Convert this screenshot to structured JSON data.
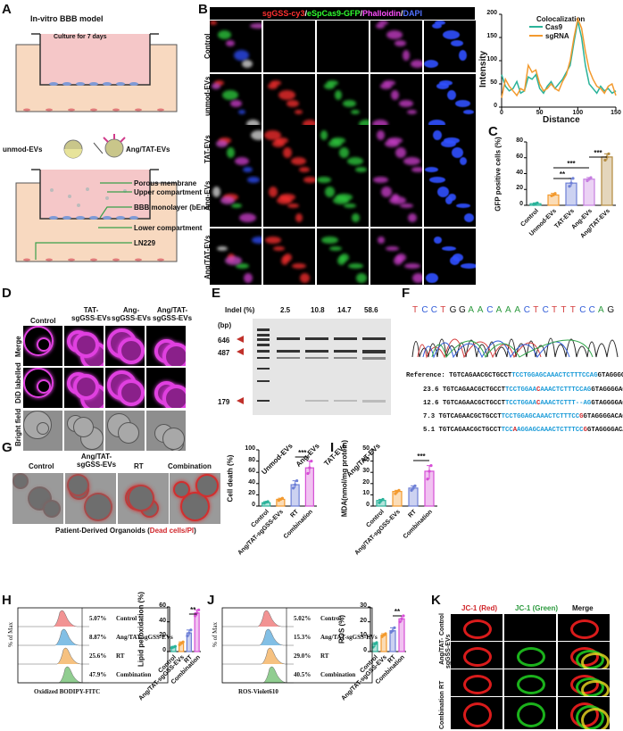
{
  "panels": {
    "A": "A",
    "B": "B",
    "C": "C",
    "D": "D",
    "E": "E",
    "F": "F",
    "G": "G",
    "H": "H",
    "I": "I",
    "J": "J",
    "K": "K"
  },
  "panelA": {
    "title": "In-vitro BBB model",
    "culture": "Culture for 7 days",
    "unmod": "unmod-EVs",
    "angtat": "Ang/TAT-EVs",
    "labels": [
      "Porous membrane",
      "Upper compartment",
      "BBB monolayer (bEnd.3)",
      "Lower compartment",
      "LN229"
    ]
  },
  "panelB": {
    "header": {
      "sg": "sgGSS-cy3",
      "s1": "/",
      "cas": "eSpCas9-GFP",
      "s2": "/",
      "ph": "Phalloidin",
      "s3": "/",
      "dapi": "DAPI"
    },
    "rows": [
      "Control",
      "unmod-EVs",
      "TAT-EVs",
      "Ang-EVs",
      "Ang/TAT-EVs"
    ],
    "coloc": {
      "title": "Colocalization",
      "legend": [
        "Cas9",
        "sgRNA"
      ],
      "xlabel": "Distance",
      "ylabel": "Intensity",
      "xticks": [
        "0",
        "50",
        "100",
        "150"
      ],
      "yticks": [
        "0",
        "50",
        "100",
        "150",
        "200"
      ]
    }
  },
  "chart_data": [
    {
      "type": "line",
      "panel": "B",
      "title": "Colocalization",
      "xlabel": "Distance",
      "ylabel": "Intensity",
      "xlim": [
        0,
        150
      ],
      "ylim": [
        0,
        200
      ],
      "series": [
        {
          "name": "Cas9",
          "color": "#2bb39a",
          "x": [
            0,
            5,
            10,
            15,
            20,
            25,
            30,
            35,
            40,
            45,
            50,
            55,
            60,
            65,
            70,
            75,
            80,
            85,
            90,
            95,
            100,
            105,
            110,
            115,
            120,
            125,
            130,
            135,
            140,
            145,
            150
          ],
          "y": [
            70,
            45,
            35,
            40,
            55,
            30,
            35,
            65,
            60,
            70,
            40,
            30,
            45,
            55,
            40,
            50,
            60,
            75,
            90,
            140,
            185,
            150,
            90,
            50,
            40,
            30,
            45,
            35,
            40,
            30,
            35
          ]
        },
        {
          "name": "sgRNA",
          "color": "#f39a2e",
          "x": [
            0,
            5,
            10,
            15,
            20,
            25,
            30,
            35,
            40,
            45,
            50,
            55,
            60,
            65,
            70,
            75,
            80,
            85,
            90,
            95,
            100,
            105,
            110,
            115,
            120,
            125,
            130,
            135,
            140,
            145,
            150
          ],
          "y": [
            20,
            60,
            45,
            35,
            25,
            40,
            35,
            90,
            75,
            80,
            50,
            35,
            40,
            50,
            40,
            35,
            55,
            70,
            100,
            150,
            190,
            170,
            120,
            80,
            60,
            45,
            40,
            30,
            45,
            50,
            25
          ]
        }
      ]
    },
    {
      "type": "bar",
      "panel": "C",
      "ylabel": "GFP positive cells (%)",
      "ylim": [
        0,
        80
      ],
      "yticks": [
        "0",
        "20",
        "40",
        "60",
        "80"
      ],
      "categories": [
        "Control",
        "Unmod-EVs",
        "TAT-EVs",
        "Ang-EVs",
        "Ang/TAT-EVs"
      ],
      "values": [
        2,
        13,
        28,
        33,
        61
      ],
      "colors": [
        "#2bb39a",
        "#f39a2e",
        "#6d7fd6",
        "#c67ee0",
        "#b28a3e"
      ],
      "sig": [
        "**",
        "***",
        "***"
      ]
    },
    {
      "type": "bar",
      "panel": "G",
      "ylabel": "Cell death (%)",
      "ylim": [
        0,
        100
      ],
      "yticks": [
        "0",
        "20",
        "40",
        "60",
        "80",
        "100"
      ],
      "categories": [
        "Control",
        "Ang/TAT-sgGSS-EVs",
        "RT",
        "Combination"
      ],
      "values": [
        6,
        12,
        38,
        68
      ],
      "colors": [
        "#2bb39a",
        "#f39a2e",
        "#6d7fd6",
        "#d64fd6"
      ],
      "sig": [
        "***"
      ]
    },
    {
      "type": "bar",
      "panel": "I",
      "ylabel": "MDA(nmol/mg protein)",
      "ylim": [
        0,
        50
      ],
      "yticks": [
        "0",
        "10",
        "20",
        "30",
        "40",
        "50"
      ],
      "categories": [
        "Control",
        "Ang/TAT-sgGSS-EVs",
        "RT",
        "Combination"
      ],
      "values": [
        5,
        13,
        16,
        31
      ],
      "colors": [
        "#2bb39a",
        "#f39a2e",
        "#6d7fd6",
        "#d64fd6"
      ],
      "sig": [
        "***"
      ]
    },
    {
      "type": "bar",
      "panel": "H",
      "ylabel": "Lipid peroxidation (%)",
      "ylim": [
        0,
        60
      ],
      "yticks": [
        "0",
        "20",
        "40",
        "60"
      ],
      "categories": [
        "Control",
        "Ang/TAT-sgGSS-EVs",
        "RT",
        "Combination"
      ],
      "values": [
        6,
        11,
        25,
        52
      ],
      "colors": [
        "#2bb39a",
        "#f39a2e",
        "#6d7fd6",
        "#d64fd6"
      ],
      "sig": [
        "**"
      ]
    },
    {
      "type": "bar",
      "panel": "J",
      "ylabel": "ROS (%)",
      "ylim": [
        0,
        30
      ],
      "yticks": [
        "0",
        "10",
        "20",
        "30"
      ],
      "categories": [
        "Control",
        "Ang/TAT-sgGSS-EVs",
        "RT",
        "Combination"
      ],
      "values": [
        5,
        11,
        14,
        22
      ],
      "colors": [
        "#2bb39a",
        "#f39a2e",
        "#6d7fd6",
        "#d64fd6"
      ],
      "sig": [
        "**"
      ]
    }
  ],
  "panelD": {
    "cols": [
      "Control",
      "TAT-\nsgGSS-EVs",
      "Ang-\nsgGSS-EVs",
      "Ang/TAT-\nsgGSS-EVs"
    ],
    "rows": [
      "Merge",
      "DiD labelled",
      "Bright field"
    ]
  },
  "panelE": {
    "indel_label": "Indel (%)",
    "indels": [
      "2.5",
      "10.8",
      "14.7",
      "58.6"
    ],
    "bp": "(bp)",
    "markers": [
      "646",
      "487",
      "179"
    ],
    "lanes": [
      "Unmod-EVs",
      "Ang-EVs",
      "TAT-EVs",
      "Ang/TAT-EVs"
    ]
  },
  "panelF": {
    "bases": [
      "T",
      "C",
      "C",
      "T",
      "G",
      "G",
      "A",
      "A",
      "C",
      "A",
      "A",
      "A",
      "C",
      "T",
      "C",
      "T",
      "T",
      "T",
      "C",
      "C",
      "A",
      "G"
    ],
    "lines": [
      {
        "prefix": "Reference: TGTCAGAACGCTGCCT",
        "mid": "TCCTGGAGCAAACTCTTTCCAG",
        "suffix": "GTAGGGGACAGT",
        "red": ""
      },
      {
        "prefix": "23.6 TGTCAGAACGCTGCCT",
        "mid": "TCCTGGAA",
        "red": "C",
        "mid2": "AAACTCTTTCCAG",
        "suffix": "GTAGGGGACAGT"
      },
      {
        "prefix": "12.6 TGTCAGAACGCTGCCT",
        "mid": "TCCTGGAA",
        "red": "C",
        "mid2": "AAACTCTTT--AG",
        "suffix": "GTAGGGGACAGT"
      },
      {
        "prefix": "7.3 TGTCAGAACGCTGCCT",
        "mid": "TCCTGGAGCAAACTCTTTCC",
        "red": "G",
        "mid2": "",
        "suffix": "GTAGGGGACAGT"
      },
      {
        "prefix": "5.1 TGTCAGAACGCTGCCT",
        "mid": "TCC",
        "red": "A",
        "mid2": "AGGAGCAAACTCTTTCC",
        "red2": "G",
        "suffix": "GTAGGGGACAGT"
      }
    ]
  },
  "panelG": {
    "cols": [
      "Control",
      "Ang/TAT-\nsgGSS-EVs",
      "RT",
      "Combination"
    ],
    "caption_a": "Patient-Derived Organoids (",
    "caption_b": "Dead cells/PI",
    "caption_c": ")"
  },
  "panelH": {
    "xlabel": "Oxidized BODIPY-FITC",
    "ylabel": "% of Max",
    "pcts": [
      "5.07%",
      "8.87%",
      "25.6%",
      "47.9%"
    ],
    "names": [
      "Control",
      "Ang/TAT-sgGSS-EVs",
      "RT",
      "Combination"
    ]
  },
  "panelJ": {
    "xlabel": "ROS-Violet610",
    "ylabel": "% of Max",
    "pcts": [
      "5.02%",
      "15.3%",
      "29.0%",
      "40.5%"
    ],
    "names": [
      "Control",
      "Ang/TAT-sgGSS-EVs",
      "RT",
      "Combination"
    ]
  },
  "panelK": {
    "cols": [
      "JC-1 (Red)",
      "JC-1 (Green)",
      "Merge"
    ],
    "rows": [
      "Control",
      "Ang/TAT-\nsgGSS-EVs",
      "RT",
      "Combination"
    ]
  },
  "sig": {
    "s2": "**",
    "s3": "***"
  }
}
